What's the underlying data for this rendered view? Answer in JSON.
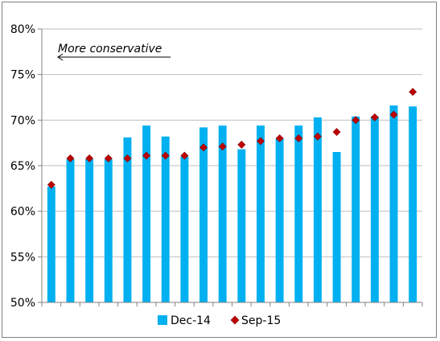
{
  "chart_data": {
    "type": "bar",
    "title": "",
    "xlabel": "",
    "ylabel": "",
    "ylim": [
      50,
      80
    ],
    "yticks": [
      50,
      55,
      60,
      65,
      70,
      75,
      80
    ],
    "ytick_suffix": "%",
    "grid": "horizontal",
    "legend_position": "bottom",
    "annotation": {
      "text": "More conservative",
      "arrow": "left"
    },
    "series": [
      {
        "name": "Dec-14",
        "kind": "bar",
        "color": "#00b0f0",
        "values": [
          62.7,
          65.7,
          65.7,
          65.7,
          68.1,
          69.4,
          68.2,
          66.0,
          69.2,
          69.4,
          66.8,
          69.4,
          68.0,
          69.4,
          70.3,
          66.5,
          70.4,
          70.4,
          71.6,
          71.5
        ]
      },
      {
        "name": "Sep-15",
        "kind": "marker",
        "color": "#c00000",
        "values": [
          62.9,
          65.8,
          65.8,
          65.8,
          65.8,
          66.1,
          66.1,
          66.1,
          67.0,
          67.1,
          67.3,
          67.7,
          68.0,
          68.0,
          68.2,
          68.7,
          70.0,
          70.3,
          70.6,
          73.1
        ]
      }
    ]
  }
}
